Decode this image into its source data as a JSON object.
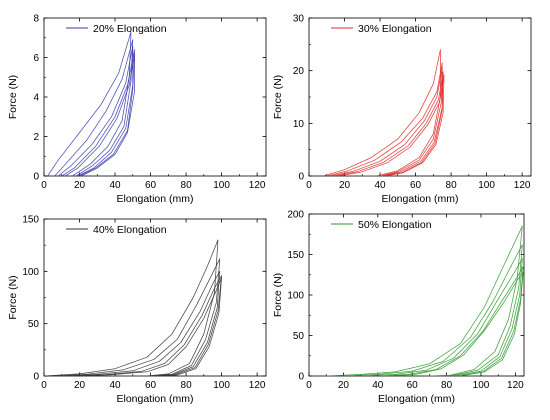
{
  "chart_data": [
    {
      "type": "line",
      "xlabel": "Elongation (mm)",
      "ylabel": "Force (N)",
      "xlim": [
        0,
        125
      ],
      "ylim": [
        0,
        8
      ],
      "xticks": [
        0,
        20,
        40,
        60,
        80,
        100,
        120
      ],
      "yticks": [
        0,
        2,
        4,
        6,
        8
      ],
      "legend": "top-left",
      "color": "#3a3ab0",
      "series": [
        {
          "name": "20% Elongation",
          "points": [
            [
              2,
              0
            ],
            [
              8,
              0.8
            ],
            [
              20,
              2.2
            ],
            [
              32,
              3.6
            ],
            [
              42,
              5.2
            ],
            [
              49,
              7.3
            ],
            [
              48,
              5
            ],
            [
              44,
              2.8
            ],
            [
              36,
              1.5
            ],
            [
              26,
              0.6
            ],
            [
              16,
              0
            ],
            [
              14,
              0
            ]
          ]
        },
        {
          "name": "",
          "points": [
            [
              6,
              0
            ],
            [
              12,
              0.6
            ],
            [
              24,
              1.8
            ],
            [
              35,
              3.3
            ],
            [
              44,
              4.9
            ],
            [
              50,
              6.9
            ],
            [
              49,
              4.8
            ],
            [
              45,
              2.5
            ],
            [
              37,
              1.3
            ],
            [
              27,
              0.5
            ],
            [
              18,
              0
            ],
            [
              16,
              0
            ]
          ]
        },
        {
          "name": "",
          "points": [
            [
              8,
              0
            ],
            [
              15,
              0.5
            ],
            [
              27,
              1.6
            ],
            [
              38,
              3.0
            ],
            [
              46,
              4.7
            ],
            [
              50,
              6.6
            ],
            [
              50,
              4.6
            ],
            [
              46,
              2.4
            ],
            [
              38,
              1.2
            ],
            [
              28,
              0.4
            ],
            [
              19,
              0
            ]
          ]
        },
        {
          "name": "",
          "points": [
            [
              10,
              0
            ],
            [
              17,
              0.4
            ],
            [
              29,
              1.5
            ],
            [
              40,
              3.0
            ],
            [
              47,
              4.6
            ],
            [
              51,
              6.4
            ],
            [
              50,
              4.4
            ],
            [
              47,
              2.3
            ],
            [
              39,
              1.1
            ],
            [
              29,
              0.4
            ],
            [
              20,
              0
            ]
          ]
        },
        {
          "name": "",
          "points": [
            [
              12,
              0
            ],
            [
              19,
              0.4
            ],
            [
              31,
              1.5
            ],
            [
              41,
              2.9
            ],
            [
              48,
              4.6
            ],
            [
              51,
              6.2
            ],
            [
              51,
              4.3
            ],
            [
              47,
              2.2
            ],
            [
              40,
              1.1
            ],
            [
              30,
              0.4
            ],
            [
              21,
              0
            ]
          ]
        }
      ]
    },
    {
      "type": "line",
      "xlabel": "Elongation (mm)",
      "ylabel": "Force (N)",
      "xlim": [
        0,
        125
      ],
      "ylim": [
        0,
        30
      ],
      "xticks": [
        0,
        20,
        40,
        60,
        80,
        100,
        120
      ],
      "yticks": [
        0,
        10,
        20,
        30
      ],
      "legend": "top-left",
      "color": "#e02828",
      "series": [
        {
          "name": "30% Elongation",
          "points": [
            [
              8,
              0
            ],
            [
              20,
              1.2
            ],
            [
              35,
              3.5
            ],
            [
              50,
              7
            ],
            [
              62,
              12
            ],
            [
              70,
              17.5
            ],
            [
              74,
              24
            ],
            [
              74,
              15
            ],
            [
              70,
              8
            ],
            [
              62,
              3.5
            ],
            [
              50,
              1
            ],
            [
              38,
              0
            ],
            [
              30,
              0
            ]
          ]
        },
        {
          "name": "",
          "points": [
            [
              10,
              0
            ],
            [
              22,
              1
            ],
            [
              37,
              3
            ],
            [
              52,
              6.5
            ],
            [
              64,
              11
            ],
            [
              72,
              16
            ],
            [
              75,
              21.5
            ],
            [
              74.5,
              14
            ],
            [
              70,
              7
            ],
            [
              62,
              3
            ],
            [
              50,
              0.8
            ],
            [
              40,
              0
            ]
          ]
        },
        {
          "name": "",
          "points": [
            [
              12,
              0
            ],
            [
              25,
              0.9
            ],
            [
              40,
              2.8
            ],
            [
              54,
              6
            ],
            [
              65,
              10.5
            ],
            [
              72,
              15
            ],
            [
              75,
              20.5
            ],
            [
              75,
              13
            ],
            [
              70.5,
              6.5
            ],
            [
              63,
              2.8
            ],
            [
              51,
              0.7
            ],
            [
              41,
              0
            ]
          ]
        },
        {
          "name": "",
          "points": [
            [
              14,
              0
            ],
            [
              27,
              0.8
            ],
            [
              42,
              2.6
            ],
            [
              56,
              5.8
            ],
            [
              66,
              10
            ],
            [
              73,
              14.5
            ],
            [
              75.5,
              19.8
            ],
            [
              75,
              12.5
            ],
            [
              71,
              6.2
            ],
            [
              63.5,
              2.6
            ],
            [
              52,
              0.6
            ],
            [
              42,
              0
            ]
          ]
        },
        {
          "name": "",
          "points": [
            [
              16,
              0
            ],
            [
              29,
              0.7
            ],
            [
              44,
              2.5
            ],
            [
              57,
              5.5
            ],
            [
              67,
              9.8
            ],
            [
              73.5,
              14
            ],
            [
              76,
              19.2
            ],
            [
              75.5,
              12
            ],
            [
              71.5,
              6
            ],
            [
              64,
              2.5
            ],
            [
              53,
              0.6
            ],
            [
              43,
              0
            ]
          ]
        }
      ]
    },
    {
      "type": "line",
      "xlabel": "Elongation (mm)",
      "ylabel": "Force (N)",
      "xlim": [
        0,
        125
      ],
      "ylim": [
        0,
        150
      ],
      "xticks": [
        0,
        20,
        40,
        60,
        80,
        100,
        120
      ],
      "yticks": [
        0,
        50,
        100,
        150
      ],
      "legend": "top-left",
      "color": "#333333",
      "series": [
        {
          "name": "40% Elongation",
          "points": [
            [
              0,
              0
            ],
            [
              20,
              2
            ],
            [
              40,
              7
            ],
            [
              58,
              18
            ],
            [
              72,
              40
            ],
            [
              84,
              75
            ],
            [
              92,
              105
            ],
            [
              98,
              130
            ],
            [
              96,
              80
            ],
            [
              90,
              40
            ],
            [
              82,
              12
            ],
            [
              70,
              2
            ],
            [
              58,
              0
            ]
          ]
        },
        {
          "name": "",
          "points": [
            [
              5,
              0
            ],
            [
              25,
              1.8
            ],
            [
              45,
              6
            ],
            [
              62,
              16
            ],
            [
              75,
              35
            ],
            [
              86,
              68
            ],
            [
              94,
              95
            ],
            [
              99,
              112
            ],
            [
              97,
              70
            ],
            [
              91,
              35
            ],
            [
              83,
              10
            ],
            [
              72,
              1.5
            ],
            [
              60,
              0
            ]
          ]
        },
        {
          "name": "",
          "points": [
            [
              10,
              0
            ],
            [
              30,
              1.5
            ],
            [
              50,
              5
            ],
            [
              65,
              14
            ],
            [
              77,
              32
            ],
            [
              88,
              62
            ],
            [
              95,
              88
            ],
            [
              99,
              100
            ],
            [
              97.5,
              65
            ],
            [
              92,
              32
            ],
            [
              84,
              9
            ],
            [
              73,
              1.3
            ],
            [
              62,
              0
            ]
          ]
        },
        {
          "name": "",
          "points": [
            [
              15,
              0
            ],
            [
              35,
              1.3
            ],
            [
              55,
              4.5
            ],
            [
              68,
              12
            ],
            [
              79,
              30
            ],
            [
              89,
              58
            ],
            [
              96,
              84
            ],
            [
              100,
              96
            ],
            [
              98,
              62
            ],
            [
              92.5,
              30
            ],
            [
              85,
              8
            ],
            [
              74,
              1.2
            ],
            [
              64,
              0
            ]
          ]
        },
        {
          "name": "",
          "points": [
            [
              20,
              0
            ],
            [
              38,
              1.2
            ],
            [
              58,
              4
            ],
            [
              70,
              11
            ],
            [
              80,
              28
            ],
            [
              90,
              55
            ],
            [
              96.5,
              80
            ],
            [
              100,
              94
            ],
            [
              98.5,
              60
            ],
            [
              93,
              28
            ],
            [
              85.5,
              7
            ],
            [
              75,
              1
            ],
            [
              66,
              0
            ]
          ]
        }
      ]
    },
    {
      "type": "line",
      "xlabel": "Elongation (mm)",
      "ylabel": "Force (N)",
      "xlim": [
        0,
        125
      ],
      "ylim": [
        0,
        200
      ],
      "xticks": [
        0,
        20,
        40,
        60,
        80,
        100,
        120
      ],
      "yticks": [
        0,
        50,
        100,
        150,
        200
      ],
      "legend": "top-left",
      "color": "#2a9a2a",
      "series": [
        {
          "name": "50% Elongation",
          "points": [
            [
              10,
              0
            ],
            [
              30,
              2
            ],
            [
              50,
              5
            ],
            [
              70,
              15
            ],
            [
              88,
              40
            ],
            [
              102,
              85
            ],
            [
              114,
              140
            ],
            [
              124,
              185
            ],
            [
              121,
              120
            ],
            [
              116,
              70
            ],
            [
              108,
              30
            ],
            [
              96,
              8
            ],
            [
              82,
              1
            ],
            [
              70,
              0
            ]
          ]
        },
        {
          "name": "",
          "points": [
            [
              20,
              0
            ],
            [
              40,
              2
            ],
            [
              60,
              6
            ],
            [
              78,
              18
            ],
            [
              94,
              48
            ],
            [
              107,
              92
            ],
            [
              118,
              138
            ],
            [
              124,
              162
            ],
            [
              122,
              110
            ],
            [
              117,
              62
            ],
            [
              110,
              26
            ],
            [
              98,
              7
            ],
            [
              84,
              1
            ],
            [
              72,
              0
            ]
          ]
        },
        {
          "name": "",
          "points": [
            [
              30,
              0
            ],
            [
              50,
              2
            ],
            [
              68,
              7
            ],
            [
              84,
              22
            ],
            [
              98,
              52
            ],
            [
              110,
              95
            ],
            [
              120,
              130
            ],
            [
              124,
              145
            ],
            [
              122.5,
              100
            ],
            [
              118,
              58
            ],
            [
              111,
              24
            ],
            [
              100,
              6
            ],
            [
              86,
              0.8
            ],
            [
              74,
              0
            ]
          ]
        },
        {
          "name": "",
          "points": [
            [
              40,
              0
            ],
            [
              58,
              2
            ],
            [
              74,
              8
            ],
            [
              88,
              25
            ],
            [
              101,
              55
            ],
            [
              112,
              92
            ],
            [
              121,
              122
            ],
            [
              124.5,
              135
            ],
            [
              123,
              95
            ],
            [
              119,
              55
            ],
            [
              112,
              22
            ],
            [
              101,
              5
            ],
            [
              88,
              0.5
            ],
            [
              76,
              0
            ]
          ]
        },
        {
          "name": "",
          "points": [
            [
              45,
              0
            ],
            [
              62,
              2
            ],
            [
              77,
              9
            ],
            [
              90,
              26
            ],
            [
              102,
              56
            ],
            [
              113,
              90
            ],
            [
              121,
              118
            ],
            [
              124.5,
              128
            ],
            [
              123,
              90
            ],
            [
              119.5,
              52
            ],
            [
              112.5,
              20
            ],
            [
              102,
              5
            ],
            [
              89,
              0.5
            ],
            [
              78,
              0
            ]
          ]
        }
      ]
    }
  ]
}
